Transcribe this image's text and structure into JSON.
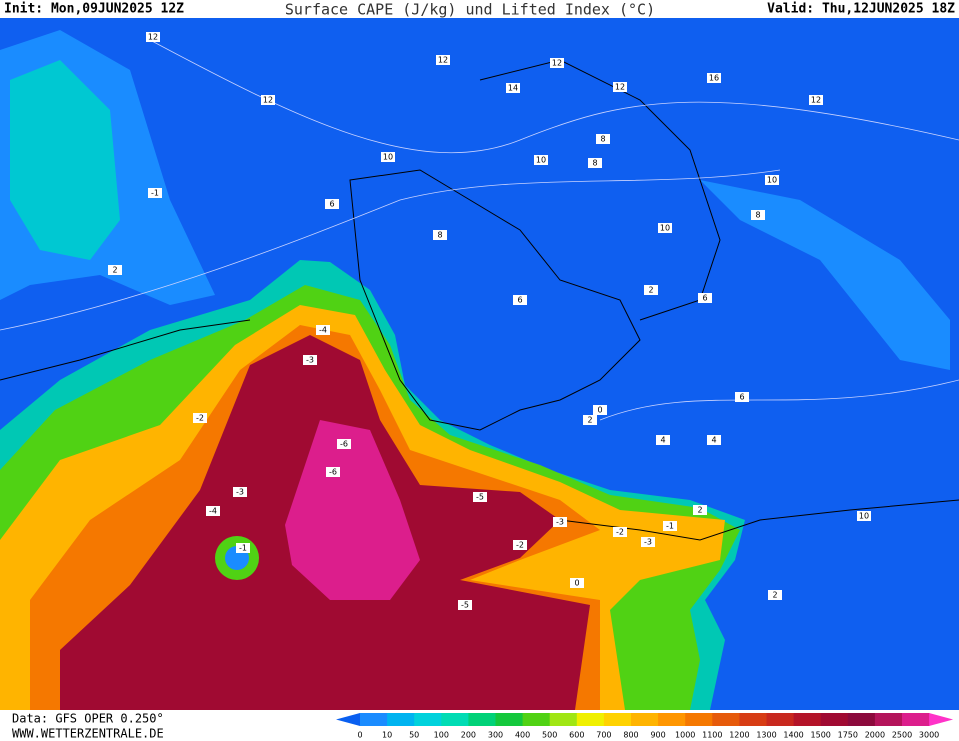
{
  "header": {
    "init": "Init: Mon,09JUN2025 12Z",
    "title": "Surface CAPE (J/kg) und Lifted Index (°C)",
    "valid": "Valid: Thu,12JUN2025 18Z"
  },
  "footer": {
    "source": "Data: GFS OPER 0.250°",
    "site": "WWW.WETTERZENTRALE.DE"
  },
  "colorbar": {
    "levels": [
      0,
      10,
      50,
      100,
      200,
      300,
      400,
      500,
      600,
      700,
      800,
      900,
      1000,
      1100,
      1200,
      1300,
      1400,
      1500,
      1750,
      2000,
      2500,
      3000
    ],
    "colors": [
      "#1a8cff",
      "#00b4f0",
      "#00d2dc",
      "#00dcb4",
      "#00d278",
      "#14c83c",
      "#50d214",
      "#a0e614",
      "#f0f000",
      "#ffd200",
      "#ffb400",
      "#ff9600",
      "#f57800",
      "#e65a0a",
      "#d73c14",
      "#c8281e",
      "#b41428",
      "#a00a32",
      "#8c0a3c",
      "#b4145a",
      "#dc1e8c"
    ],
    "below_color": "#0a5ff0",
    "above_color": "#ff32c8"
  },
  "lifted_index_labels": [
    12,
    12,
    12,
    10,
    14,
    12,
    12,
    16,
    12,
    10,
    8,
    10,
    8,
    10,
    8,
    6,
    6,
    2,
    0,
    -1,
    2,
    -2,
    -4,
    -3,
    -6,
    -6,
    -5,
    -3,
    -4,
    -3,
    -2,
    -1,
    -3,
    -2,
    -5,
    0,
    -1,
    2,
    4,
    10,
    6,
    4,
    2,
    2,
    8,
    6
  ]
}
